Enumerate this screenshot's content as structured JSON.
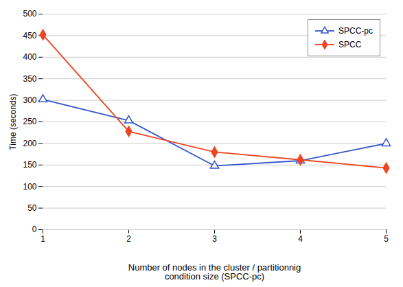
{
  "chart_data": {
    "type": "line",
    "x": [
      1,
      2,
      3,
      4,
      5
    ],
    "series": [
      {
        "name": "SPCC-pc",
        "color": "#3355cc",
        "marker": "triangle",
        "values": [
          302,
          253,
          148,
          160,
          200
        ]
      },
      {
        "name": "SPCC",
        "color": "#ee4422",
        "marker": "diamond",
        "values": [
          452,
          228,
          180,
          162,
          143
        ]
      }
    ],
    "xlabel": "Number of nodes in the cluster / partitionnig\ncondition size (SPCC-pc)",
    "ylabel": "Time (seconds)",
    "xlim": [
      1,
      5
    ],
    "xticks": [
      1,
      2,
      3,
      4,
      5
    ],
    "ylim": [
      0,
      500
    ],
    "yticks": [
      0,
      50,
      100,
      150,
      200,
      250,
      300,
      350,
      400,
      450,
      500
    ],
    "grid": "y",
    "legend": "upper right"
  }
}
